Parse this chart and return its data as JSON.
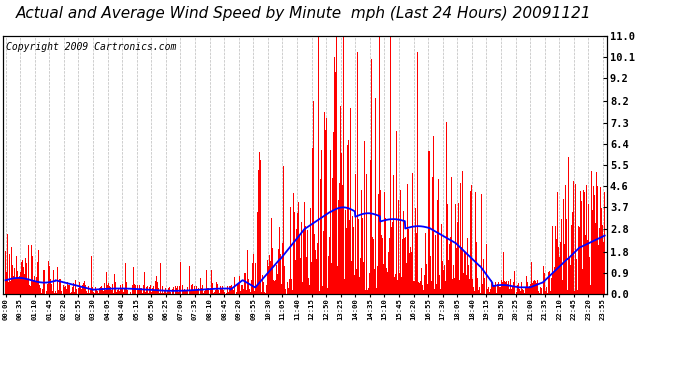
{
  "title": "Actual and Average Wind Speed by Minute  mph (Last 24 Hours) 20091121",
  "copyright": "Copyright 2009 Cartronics.com",
  "yticks": [
    0.0,
    0.9,
    1.8,
    2.8,
    3.7,
    4.6,
    5.5,
    6.4,
    7.3,
    8.2,
    9.2,
    10.1,
    11.0
  ],
  "ylim": [
    0.0,
    11.0
  ],
  "bar_color": "#FF0000",
  "line_color": "#0000FF",
  "background_color": "#FFFFFF",
  "grid_color": "#BBBBBB",
  "title_fontsize": 11,
  "copyright_fontsize": 7,
  "tick_step": 35
}
